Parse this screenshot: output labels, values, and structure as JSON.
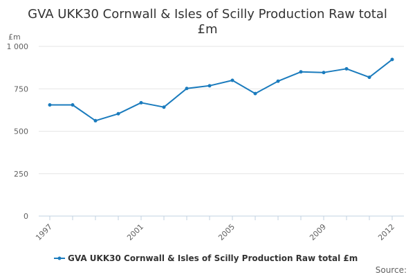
{
  "chart_data": {
    "type": "line",
    "title_lines": [
      "GVA UKK30 Cornwall & Isles of Scilly Production Raw total",
      "£m"
    ],
    "y_unit": "£m",
    "xlabel": "",
    "ylabel": "",
    "x": [
      1997,
      1998,
      1999,
      2000,
      2001,
      2002,
      2003,
      2004,
      2005,
      2006,
      2007,
      2008,
      2009,
      2010,
      2011,
      2012
    ],
    "x_tick_labels": [
      "1997",
      "2001",
      "2005",
      "2009",
      "2012"
    ],
    "x_tick_values": [
      1997,
      2001,
      2005,
      2009,
      2012
    ],
    "y_tick_labels": [
      "0",
      "250",
      "500",
      "750",
      "1 000"
    ],
    "y_tick_values": [
      0,
      250,
      500,
      750,
      1000
    ],
    "ylim": [
      0,
      1000
    ],
    "xlim": [
      1997,
      2012
    ],
    "grid": true,
    "legend_position": "bottom-center",
    "series": [
      {
        "name": "GVA UKK30 Cornwall & Isles of Scilly Production Raw total £m",
        "color": "#1a7bbd",
        "values": [
          655,
          655,
          562,
          603,
          668,
          642,
          752,
          768,
          800,
          722,
          795,
          850,
          846,
          868,
          818,
          923
        ]
      }
    ],
    "source_label": "Source:"
  }
}
